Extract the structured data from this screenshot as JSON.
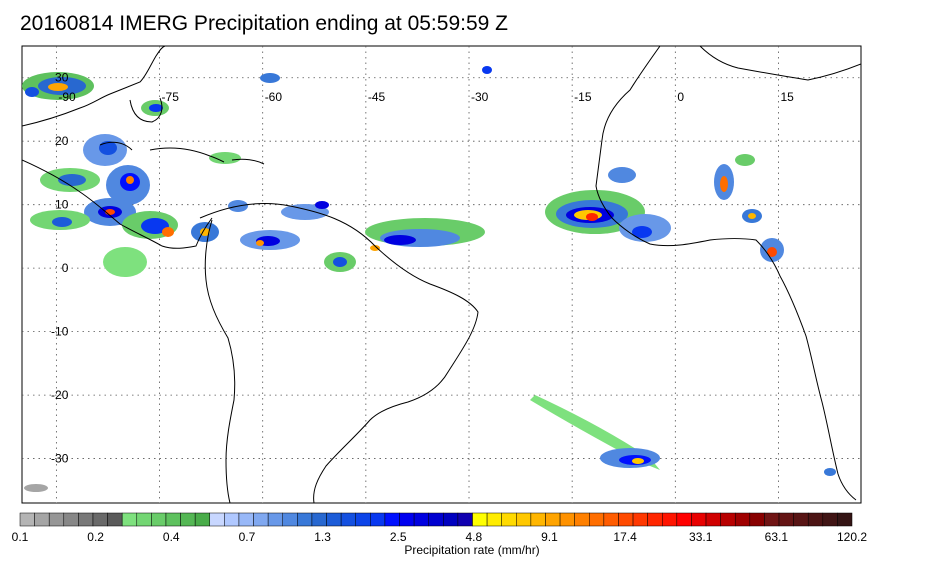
{
  "title": "20160814 IMERG Precipitation ending at 05:59:59 Z",
  "map": {
    "lon_labels": [
      "-90",
      "-75",
      "-60",
      "-45",
      "-30",
      "-15",
      "0",
      "15"
    ],
    "lat_labels": [
      "30",
      "20",
      "10",
      "0",
      "-10",
      "-20",
      "-30"
    ],
    "lon_range": [
      -95,
      27
    ],
    "lat_range": [
      -37,
      35
    ],
    "grid": "dotted"
  },
  "colorbar": {
    "label": "Precipitation rate (mm/hr)",
    "tick_labels": [
      "0.1",
      "0.2",
      "0.4",
      "0.7",
      "1.3",
      "2.5",
      "4.8",
      "9.1",
      "17.4",
      "33.1",
      "63.1",
      "120.2"
    ],
    "colors": [
      "#b4b4b4",
      "#a5a5a5",
      "#969696",
      "#878787",
      "#787878",
      "#696969",
      "#5a5a5a",
      "#7ee17e",
      "#73d673",
      "#69cc69",
      "#5ec15e",
      "#54b754",
      "#49ac49",
      "#c8d7ff",
      "#b0c8ff",
      "#98b8f8",
      "#80a8f0",
      "#6898e8",
      "#5088e0",
      "#3878d8",
      "#2868d0",
      "#1c5cd8",
      "#1450e0",
      "#0c44e8",
      "#0838f0",
      "#0010ff",
      "#0000f0",
      "#0000e0",
      "#0000d0",
      "#0000c0",
      "#1000b0",
      "#ffff00",
      "#ffec00",
      "#ffda00",
      "#ffc800",
      "#ffb600",
      "#ffa400",
      "#ff9200",
      "#ff8000",
      "#ff6e00",
      "#ff5c00",
      "#ff4a00",
      "#ff3800",
      "#ff2600",
      "#ff1400",
      "#ff0000",
      "#e80000",
      "#d00000",
      "#b80000",
      "#a00000",
      "#880000",
      "#701414",
      "#641414",
      "#581414",
      "#4c1414",
      "#401414",
      "#341414"
    ]
  }
}
